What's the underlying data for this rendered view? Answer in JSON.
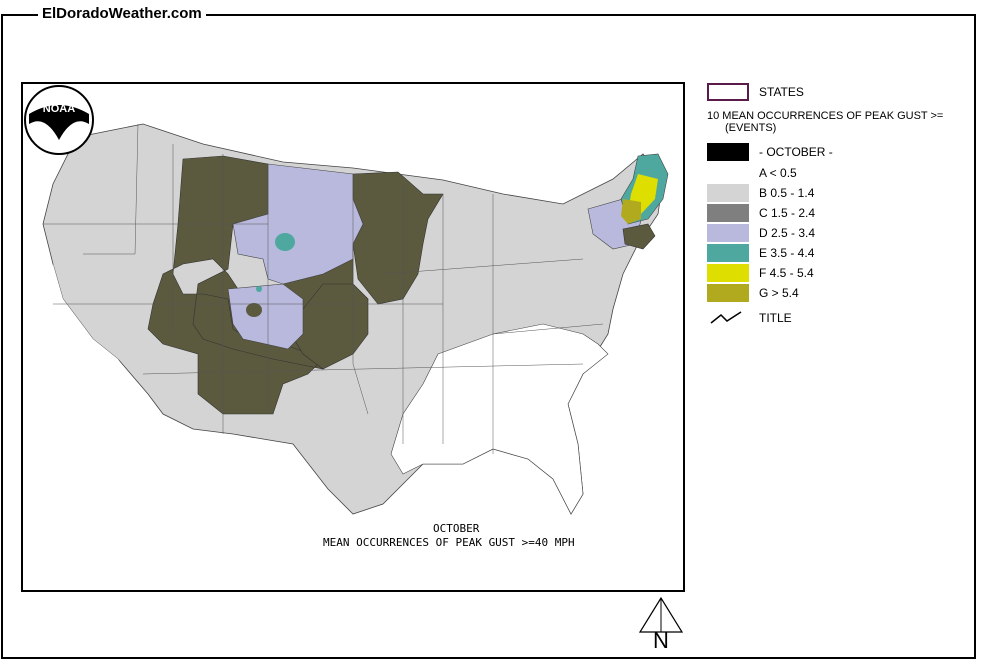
{
  "site_title": "ElDoradoWeather.com",
  "map": {
    "caption_line1": "OCTOBER",
    "caption_line2": "MEAN OCCURRENCES OF PEAK GUST >=40 MPH",
    "logo_text": "NOAA"
  },
  "legend": {
    "states_label": "STATES",
    "heading_line1": "10 MEAN OCCURRENCES OF PEAK GUST >=",
    "heading_line2": "(EVENTS)",
    "month_label": "- OCTOBER -",
    "classes": [
      {
        "label": "A < 0.5",
        "color": "#ffffff"
      },
      {
        "label": "B 0.5 - 1.4",
        "color": "#d4d4d4"
      },
      {
        "label": "C 1.5 - 2.4",
        "color": "#7f7f7f"
      },
      {
        "label": "D 2.5 - 3.4",
        "color": "#b9b9dd"
      },
      {
        "label": "E 3.5 - 4.4",
        "color": "#4ea8a0"
      },
      {
        "label": "F 4.5 - 5.4",
        "color": "#dede00"
      },
      {
        "label": "G > 5.4",
        "color": "#b2aa1e"
      }
    ],
    "title_label": "TITLE"
  },
  "colors": {
    "high_region": "#5b5a3e",
    "month_swatch": "#000000"
  },
  "north_label": "N"
}
